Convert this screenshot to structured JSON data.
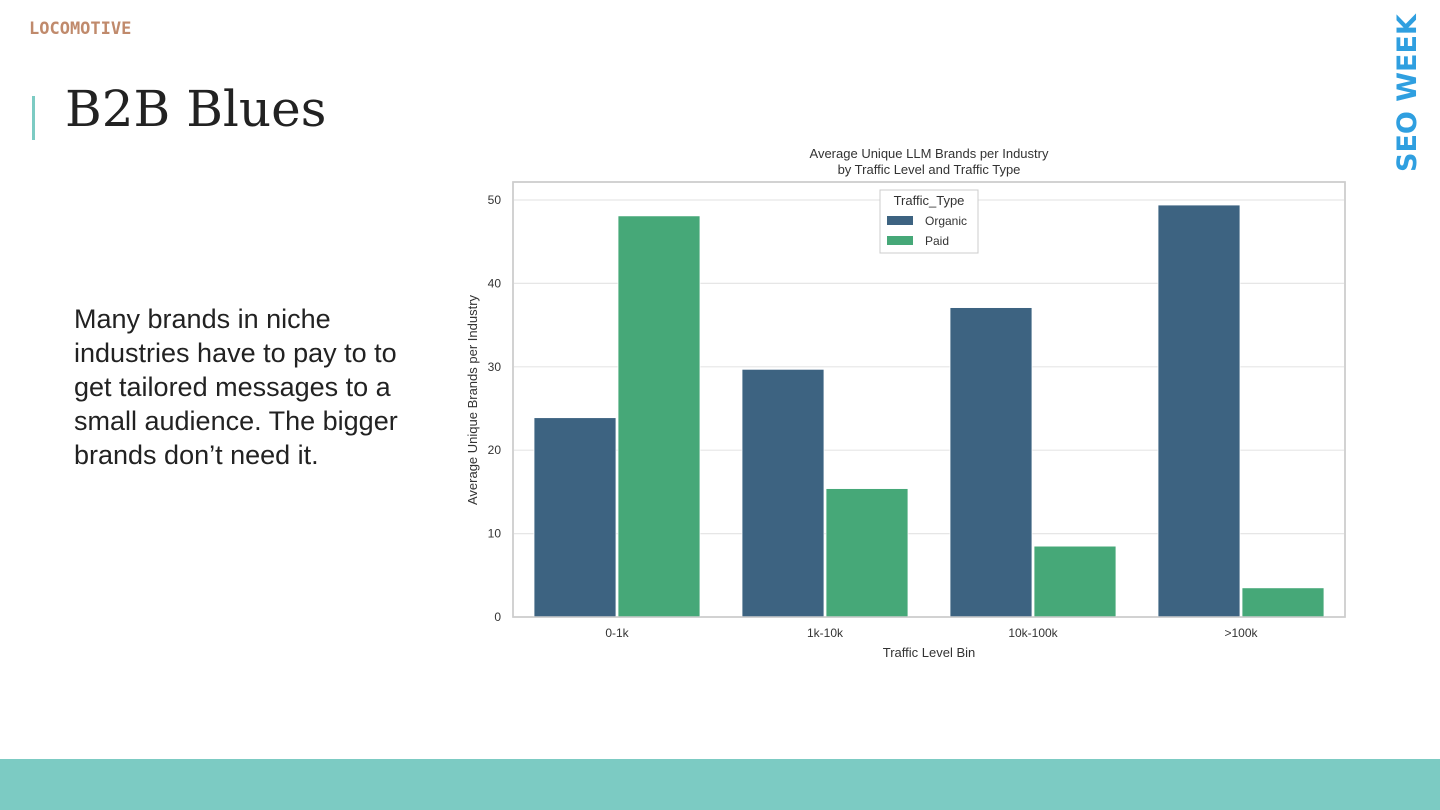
{
  "header": {
    "logo": "LOCOMOTIVE",
    "title": "B2B Blues",
    "side_brand": "SEO WEEK"
  },
  "body_text": "Many brands in niche industries have to pay to to get tailored messages to a small audience. The bigger brands don’t need it.",
  "colors": {
    "organic": "#3d6381",
    "paid": "#46a878",
    "accent": "#7ccbc3",
    "brand_blue": "#2f9fe0"
  },
  "chart_data": {
    "type": "bar",
    "title": "Average Unique LLM Brands per Industry",
    "subtitle": "by Traffic Level and Traffic Type",
    "xlabel": "Traffic Level Bin",
    "ylabel": "Average Unique Brands per Industry",
    "categories": [
      "0-1k",
      "1k-10k",
      "10k-100k",
      ">100k"
    ],
    "series": [
      {
        "name": "Organic",
        "values": [
          23.9,
          29.7,
          37.1,
          49.4
        ]
      },
      {
        "name": "Paid",
        "values": [
          48.1,
          15.4,
          8.5,
          3.5
        ]
      }
    ],
    "ylim": [
      0,
      52
    ],
    "yticks": [
      "0",
      "10",
      "20",
      "30",
      "40",
      "50"
    ],
    "legend_title": "Traffic_Type",
    "legend_position": "top-center",
    "grid": true
  }
}
